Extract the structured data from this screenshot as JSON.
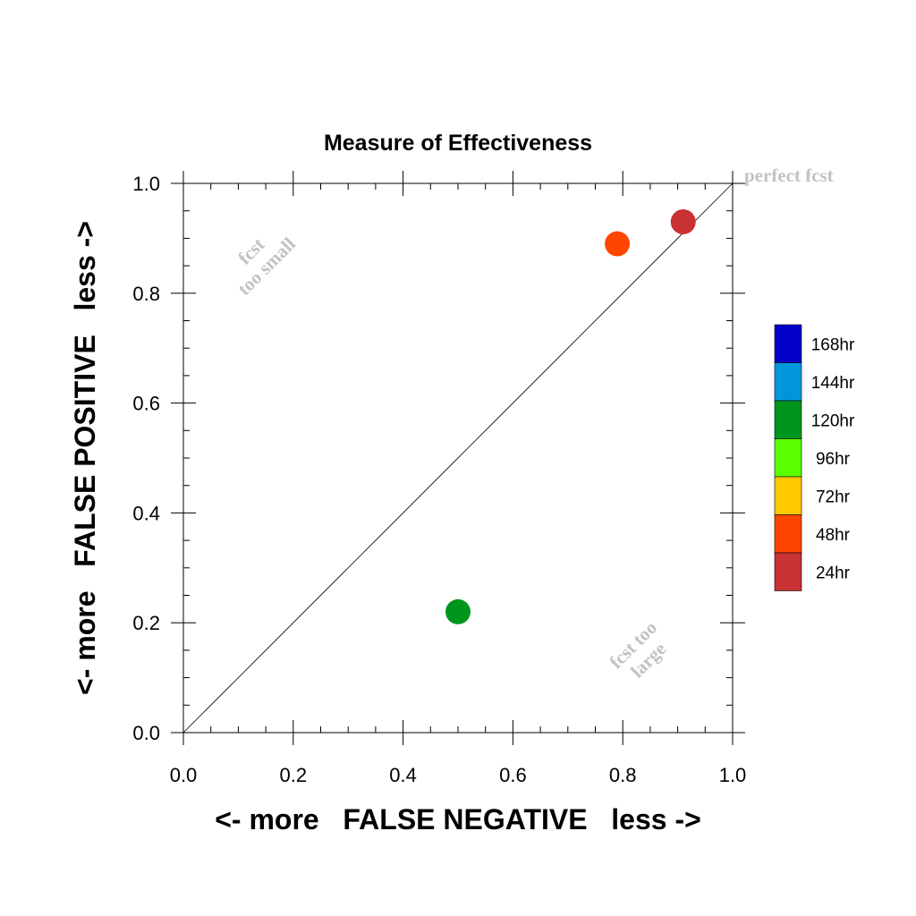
{
  "chart_data": {
    "type": "scatter",
    "title": "Measure of Effectiveness",
    "xlabel": "<- more   FALSE NEGATIVE   less ->",
    "ylabel": "<- more   FALSE POSITIVE   less ->",
    "xlim": [
      0.0,
      1.0
    ],
    "ylim": [
      0.0,
      1.0
    ],
    "x_ticks": [
      "0.0",
      "0.2",
      "0.4",
      "0.6",
      "0.8",
      "1.0"
    ],
    "y_ticks": [
      "0.0",
      "0.2",
      "0.4",
      "0.6",
      "0.8",
      "1.0"
    ],
    "grid": false,
    "diagonal_line": true,
    "annotations": {
      "top_right": "perfect fcst",
      "upper_left_line1": "fcst",
      "upper_left_line2": "too small",
      "lower_right_line1": "fcst too",
      "lower_right_line2": "large"
    },
    "legend_position": "right",
    "legend": [
      {
        "label": "168hr",
        "color": "#0000c8"
      },
      {
        "label": "144hr",
        "color": "#0096dc"
      },
      {
        "label": "120hr",
        "color": "#00961e"
      },
      {
        "label": "96hr",
        "color": "#5aff00"
      },
      {
        "label": "72hr",
        "color": "#ffc800"
      },
      {
        "label": "48hr",
        "color": "#ff4600"
      },
      {
        "label": "24hr",
        "color": "#c83232"
      }
    ],
    "points": [
      {
        "lead": "120hr",
        "x": 0.5,
        "y": 0.22,
        "color": "#00961e"
      },
      {
        "lead": "48hr",
        "x": 0.79,
        "y": 0.89,
        "color": "#ff4600"
      },
      {
        "lead": "24hr",
        "x": 0.91,
        "y": 0.93,
        "color": "#c83232"
      }
    ]
  }
}
